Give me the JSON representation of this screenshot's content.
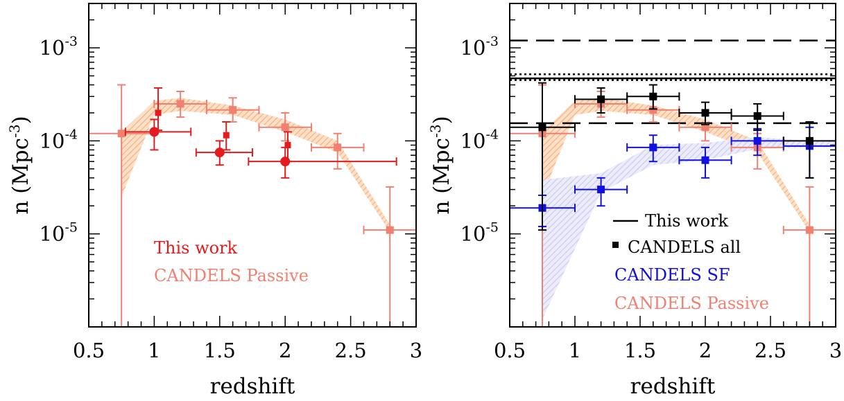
{
  "chart_data": [
    {
      "type": "scatter",
      "xlabel": "redshift",
      "ylabel_main": "n (Mpc",
      "ylabel_sup": "-3",
      "ylabel_close": ")",
      "xlim": [
        0.5,
        3.0
      ],
      "ylim": [
        1e-06,
        0.003
      ],
      "yscale": "log",
      "xticklabels": [
        "0.5",
        "1",
        "1.5",
        "2",
        "2.5",
        "3"
      ],
      "yticklabels": [
        {
          "base": "10",
          "exp": "-5",
          "value": 1e-05
        },
        {
          "base": "10",
          "exp": "-4",
          "value": 0.0001
        },
        {
          "base": "10",
          "exp": "-3",
          "value": 0.001
        }
      ],
      "legend": [
        {
          "text": "This work",
          "color": "#e41a1c"
        },
        {
          "text": "CANDELS Passive",
          "color": "#f08070"
        }
      ],
      "bands": [
        {
          "color": "#fac8a0",
          "x": [
            0.75,
            1.0,
            1.2,
            1.6,
            2.0,
            2.4,
            2.8
          ],
          "lower": [
            2.5e-05,
            0.00019,
            0.00021,
            0.00019,
            0.000125,
            7.5e-05,
            1.05e-05
          ],
          "upper": [
            0.000125,
            0.00027,
            0.00029,
            0.00024,
            0.00017,
            0.0001,
            1.25e-05
          ]
        }
      ],
      "series": [
        {
          "name": "CANDELS Passive",
          "color": "#f08070",
          "marker": "square",
          "points": [
            {
              "x": 0.75,
              "y": 0.00012,
              "xerr": [
                0.25,
                0.25
              ],
              "ylo": 1e-06,
              "yhi": 0.0004
            },
            {
              "x": 1.2,
              "y": 0.00025,
              "xerr": [
                0.2,
                0.2
              ],
              "ylo": 0.00018,
              "yhi": 0.00034
            },
            {
              "x": 1.6,
              "y": 0.000215,
              "xerr": [
                0.2,
                0.2
              ],
              "ylo": 0.00016,
              "yhi": 0.00029
            },
            {
              "x": 2.0,
              "y": 0.00014,
              "xerr": [
                0.2,
                0.2
              ],
              "ylo": 0.0001,
              "yhi": 0.0002
            },
            {
              "x": 2.4,
              "y": 8.5e-05,
              "xerr": [
                0.2,
                0.2
              ],
              "ylo": 5e-05,
              "yhi": 0.00012
            },
            {
              "x": 2.8,
              "y": 1.1e-05,
              "xerr": [
                0.2,
                0.2
              ],
              "ylo": 1e-06,
              "yhi": 3.2e-05
            }
          ]
        },
        {
          "name": "This work",
          "color": "#e41a1c",
          "marker": "square",
          "size": "small",
          "points": [
            {
              "x": 1.03,
              "y": 0.0002,
              "ylo": 0.00013,
              "yhi": 0.00037
            },
            {
              "x": 1.55,
              "y": 0.000115,
              "ylo": 8e-05,
              "yhi": 0.00016
            },
            {
              "x": 2.02,
              "y": 9e-05,
              "ylo": 6e-05,
              "yhi": 0.000125
            }
          ]
        },
        {
          "name": "This work",
          "color": "#e41a1c",
          "marker": "circle",
          "points": [
            {
              "x": 1.0,
              "y": 0.000125,
              "xerr": [
                0.22,
                0.28
              ],
              "ylo": 8e-05,
              "yhi": 0.00017
            },
            {
              "x": 1.5,
              "y": 7.5e-05,
              "xerr": [
                0.18,
                0.25
              ],
              "ylo": 5.5e-05,
              "yhi": 0.0001
            },
            {
              "x": 2.0,
              "y": 6e-05,
              "xerr": [
                0.28,
                0.85
              ],
              "ylo": 4e-05,
              "yhi": 8.5e-05
            }
          ]
        }
      ]
    },
    {
      "type": "scatter",
      "xlabel": "redshift",
      "ylabel_main": "n (Mpc",
      "ylabel_sup": "-3",
      "ylabel_close": ")",
      "xlim": [
        0.5,
        3.0
      ],
      "ylim": [
        1e-06,
        0.003
      ],
      "yscale": "log",
      "xticklabels": [
        "0.5",
        "1",
        "1.5",
        "2",
        "2.5",
        "3"
      ],
      "yticklabels": [
        {
          "base": "10",
          "exp": "-5",
          "value": 1e-05
        },
        {
          "base": "10",
          "exp": "-4",
          "value": 0.0001
        },
        {
          "base": "10",
          "exp": "-3",
          "value": 0.001
        }
      ],
      "legend": [
        {
          "text": "This work",
          "color": "#000000",
          "symbol": "line"
        },
        {
          "text": "CANDELS all",
          "color": "#000000",
          "symbol": "square"
        },
        {
          "text": "CANDELS SF",
          "color": "#1010e0",
          "symbol": "none"
        },
        {
          "text": "CANDELS Passive",
          "color": "#f08070",
          "symbol": "none"
        }
      ],
      "hlines": [
        {
          "y": 0.0012,
          "style": "dashed",
          "color": "#000000"
        },
        {
          "y": 0.00052,
          "style": "dotted",
          "color": "#000000"
        },
        {
          "y": 0.00047,
          "style": "solid",
          "color": "#000000"
        },
        {
          "y": 0.00045,
          "style": "dotted",
          "color": "#000000"
        },
        {
          "y": 0.000155,
          "style": "dashed",
          "color": "#000000"
        }
      ],
      "bands": [
        {
          "color": "#fac8a0",
          "x": [
            0.75,
            1.0,
            1.2,
            1.6,
            2.0,
            2.4,
            2.8
          ],
          "lower": [
            2.5e-05,
            0.00019,
            0.00021,
            0.00019,
            0.000125,
            7.5e-05,
            1.05e-05
          ],
          "upper": [
            0.000125,
            0.00027,
            0.00029,
            0.00024,
            0.00017,
            0.0001,
            1.25e-05
          ]
        },
        {
          "color": "#d8d8f5",
          "x": [
            0.75,
            1.2,
            1.6,
            2.0,
            2.4,
            2.8,
            3.0
          ],
          "lower": [
            1.2e-06,
            2.8e-05,
            5.5e-05,
            6.2e-05,
            8.2e-05,
            8.5e-05,
            8.5e-05
          ],
          "upper": [
            3.8e-05,
            4.5e-05,
            9e-05,
            9.5e-05,
            0.00011,
            0.0001,
            0.0001
          ]
        }
      ],
      "series": [
        {
          "name": "CANDELS Passive",
          "color": "#f08070",
          "marker": "square",
          "points": [
            {
              "x": 0.75,
              "y": 0.00012,
              "xerr": [
                0.25,
                0.25
              ],
              "ylo": 1e-06,
              "yhi": 0.0004
            },
            {
              "x": 1.2,
              "y": 0.00025,
              "xerr": [
                0.2,
                0.2
              ],
              "ylo": 0.00018,
              "yhi": 0.00034
            },
            {
              "x": 1.6,
              "y": 0.000215,
              "xerr": [
                0.2,
                0.2
              ],
              "ylo": 0.00016,
              "yhi": 0.00029
            },
            {
              "x": 2.0,
              "y": 0.00014,
              "xerr": [
                0.2,
                0.2
              ],
              "ylo": 0.0001,
              "yhi": 0.0002
            },
            {
              "x": 2.4,
              "y": 8.5e-05,
              "xerr": [
                0.2,
                0.2
              ],
              "ylo": 5e-05,
              "yhi": 0.00012
            },
            {
              "x": 2.8,
              "y": 1.1e-05,
              "xerr": [
                0.2,
                0.2
              ],
              "ylo": 1e-06,
              "yhi": 3.2e-05
            }
          ]
        },
        {
          "name": "CANDELS SF",
          "color": "#1010e0",
          "marker": "square",
          "points": [
            {
              "x": 0.75,
              "y": 1.9e-05,
              "xerr": [
                0.25,
                0.25
              ],
              "ylo": 1.2e-05,
              "yhi": 2.6e-05
            },
            {
              "x": 1.2,
              "y": 3e-05,
              "xerr": [
                0.2,
                0.2
              ],
              "ylo": 2e-05,
              "yhi": 4e-05
            },
            {
              "x": 1.6,
              "y": 8.5e-05,
              "xerr": [
                0.2,
                0.2
              ],
              "ylo": 6e-05,
              "yhi": 0.000115
            },
            {
              "x": 2.0,
              "y": 6.2e-05,
              "xerr": [
                0.2,
                0.2
              ],
              "ylo": 4e-05,
              "yhi": 8.5e-05
            },
            {
              "x": 2.4,
              "y": 0.0001,
              "xerr": [
                0.2,
                0.2
              ],
              "ylo": 7e-05,
              "yhi": 0.000135
            },
            {
              "x": 2.8,
              "y": 8.8e-05,
              "xerr": [
                0.2,
                0.2
              ],
              "ylo": 4e-05,
              "yhi": 0.00014
            }
          ]
        },
        {
          "name": "CANDELS all",
          "color": "#000000",
          "marker": "square",
          "points": [
            {
              "x": 0.75,
              "y": 0.00014,
              "xerr": [
                0.25,
                0.25
              ],
              "ylo": 1.1e-05,
              "yhi": 0.00042
            },
            {
              "x": 1.2,
              "y": 0.00028,
              "xerr": [
                0.2,
                0.2
              ],
              "ylo": 0.0002,
              "yhi": 0.00037
            },
            {
              "x": 1.6,
              "y": 0.0003,
              "xerr": [
                0.2,
                0.2
              ],
              "ylo": 0.00022,
              "yhi": 0.0004
            },
            {
              "x": 2.0,
              "y": 0.0002,
              "xerr": [
                0.2,
                0.2
              ],
              "ylo": 0.00015,
              "yhi": 0.00026
            },
            {
              "x": 2.4,
              "y": 0.000185,
              "xerr": [
                0.2,
                0.2
              ],
              "ylo": 0.00013,
              "yhi": 0.00025
            },
            {
              "x": 2.8,
              "y": 0.0001,
              "xerr": [
                0.2,
                0.2
              ],
              "ylo": 4e-05,
              "yhi": 0.00016
            }
          ]
        }
      ]
    }
  ]
}
